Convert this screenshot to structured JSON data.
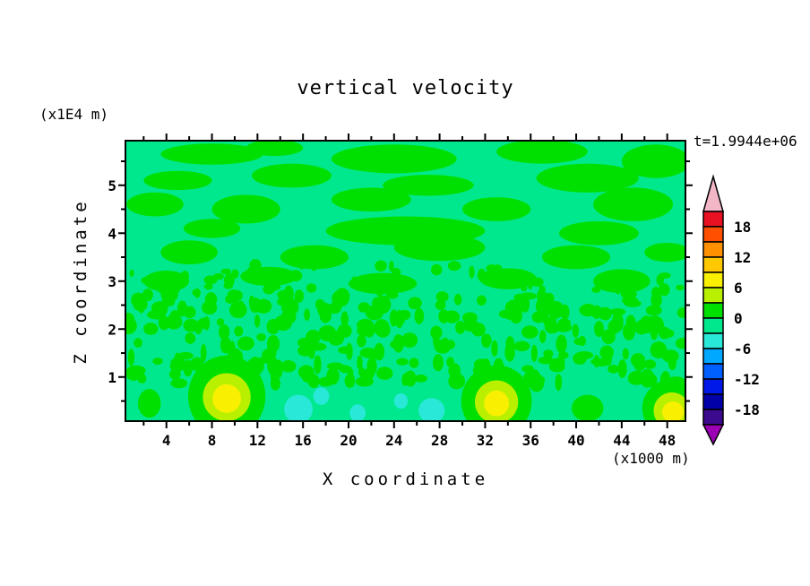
{
  "figure": {
    "title": "vertical velocity",
    "y_unit": "(x1E4 m)",
    "x_unit": "(x1000 m)",
    "xlabel": "X coordinate",
    "ylabel": "Z coordinate",
    "time_label": "t=1.9944e+06"
  },
  "chart_data": {
    "type": "contour",
    "title": "vertical velocity",
    "xlabel": "X coordinate",
    "ylabel": "Z coordinate",
    "x_unit_scale": "(x1000 m)",
    "y_unit_scale": "(x1E4 m)",
    "time": "t=1.9944e+06",
    "xlim": [
      0.4,
      49.6
    ],
    "zlim": [
      0.08,
      5.93
    ],
    "x_major_ticks": [
      4,
      8,
      12,
      16,
      20,
      24,
      28,
      32,
      36,
      40,
      44,
      48
    ],
    "x_minor_step": 2,
    "y_major_ticks": [
      1,
      2,
      3,
      4,
      5
    ],
    "y_minor_step": 0.5,
    "contour_interval": 3,
    "background_band": 7,
    "colorbar": {
      "labels": [
        18,
        12,
        6,
        0,
        -6,
        -12,
        -18
      ],
      "over_color": "#f2b6c6",
      "under_color": "#9b00b4",
      "bands": [
        {
          "range": [
            18,
            21
          ],
          "color": "#e81123"
        },
        {
          "range": [
            15,
            18
          ],
          "color": "#ff5000"
        },
        {
          "range": [
            12,
            15
          ],
          "color": "#ff9000"
        },
        {
          "range": [
            9,
            12
          ],
          "color": "#ffc800"
        },
        {
          "range": [
            6,
            9
          ],
          "color": "#f8f000"
        },
        {
          "range": [
            3,
            6
          ],
          "color": "#b8f000"
        },
        {
          "range": [
            0,
            3
          ],
          "color": "#00e000"
        },
        {
          "range": [
            -3,
            0
          ],
          "color": "#00e88e"
        },
        {
          "range": [
            -6,
            -3
          ],
          "color": "#2ae8d8"
        },
        {
          "range": [
            -9,
            -6
          ],
          "color": "#00a8ff"
        },
        {
          "range": [
            -12,
            -9
          ],
          "color": "#0060ff"
        },
        {
          "range": [
            -15,
            -12
          ],
          "color": "#0018e8"
        },
        {
          "range": [
            -18,
            -15
          ],
          "color": "#0000a8"
        },
        {
          "range": [
            -21,
            -18
          ],
          "color": "#3c0a8c"
        }
      ]
    },
    "features": [
      {
        "x": 8,
        "z": 5.65,
        "rx": 4.5,
        "rz": 0.22,
        "band": 6
      },
      {
        "x": 13.5,
        "z": 5.78,
        "rx": 2.5,
        "rz": 0.17,
        "band": 6
      },
      {
        "x": 24,
        "z": 5.55,
        "rx": 5.5,
        "rz": 0.3,
        "band": 6
      },
      {
        "x": 37,
        "z": 5.7,
        "rx": 4,
        "rz": 0.25,
        "band": 6
      },
      {
        "x": 47,
        "z": 5.5,
        "rx": 3,
        "rz": 0.35,
        "band": 6
      },
      {
        "x": 5,
        "z": 5.1,
        "rx": 3,
        "rz": 0.2,
        "band": 6
      },
      {
        "x": 15,
        "z": 5.2,
        "rx": 3.5,
        "rz": 0.25,
        "band": 6
      },
      {
        "x": 27,
        "z": 5.0,
        "rx": 4,
        "rz": 0.22,
        "band": 6
      },
      {
        "x": 41,
        "z": 5.15,
        "rx": 4.5,
        "rz": 0.3,
        "band": 6
      },
      {
        "x": 3,
        "z": 4.6,
        "rx": 2.5,
        "rz": 0.25,
        "band": 6
      },
      {
        "x": 11,
        "z": 4.5,
        "rx": 3,
        "rz": 0.3,
        "band": 6
      },
      {
        "x": 22,
        "z": 4.7,
        "rx": 3.5,
        "rz": 0.25,
        "band": 6
      },
      {
        "x": 33,
        "z": 4.5,
        "rx": 3,
        "rz": 0.25,
        "band": 6
      },
      {
        "x": 45,
        "z": 4.6,
        "rx": 3.5,
        "rz": 0.35,
        "band": 6
      },
      {
        "x": 25,
        "z": 4.05,
        "rx": 7,
        "rz": 0.3,
        "band": 6
      },
      {
        "x": 8,
        "z": 4.1,
        "rx": 2.5,
        "rz": 0.2,
        "band": 6
      },
      {
        "x": 42,
        "z": 4.0,
        "rx": 3.5,
        "rz": 0.25,
        "band": 6
      },
      {
        "x": 6,
        "z": 3.6,
        "rx": 2.5,
        "rz": 0.25,
        "band": 6
      },
      {
        "x": 17,
        "z": 3.5,
        "rx": 3,
        "rz": 0.25,
        "band": 6
      },
      {
        "x": 28,
        "z": 3.7,
        "rx": 4,
        "rz": 0.28,
        "band": 6
      },
      {
        "x": 40,
        "z": 3.5,
        "rx": 3,
        "rz": 0.25,
        "band": 6
      },
      {
        "x": 48,
        "z": 3.6,
        "rx": 2,
        "rz": 0.2,
        "band": 6
      },
      {
        "x": 4,
        "z": 3.0,
        "rx": 2,
        "rz": 0.22,
        "band": 6
      },
      {
        "x": 13,
        "z": 3.1,
        "rx": 2.5,
        "rz": 0.2,
        "band": 6
      },
      {
        "x": 23,
        "z": 2.95,
        "rx": 3,
        "rz": 0.22,
        "band": 6
      },
      {
        "x": 34,
        "z": 3.05,
        "rx": 2.5,
        "rz": 0.22,
        "band": 6
      },
      {
        "x": 44,
        "z": 3.0,
        "rx": 2.5,
        "rz": 0.25,
        "band": 6
      },
      {
        "x": 2.5,
        "z": 0.45,
        "rx": 1.0,
        "rz": 0.3,
        "band": 6
      },
      {
        "x": 9.3,
        "z": 0.6,
        "rx": 3.4,
        "rz": 0.85,
        "band": 6
      },
      {
        "x": 33,
        "z": 0.5,
        "rx": 3.1,
        "rz": 0.75,
        "band": 6
      },
      {
        "x": 41,
        "z": 0.35,
        "rx": 1.4,
        "rz": 0.28,
        "band": 6
      },
      {
        "x": 48.4,
        "z": 0.35,
        "rx": 2.6,
        "rz": 0.6,
        "band": 6
      },
      {
        "x": 15.6,
        "z": 0.33,
        "rx": 1.25,
        "rz": 0.3,
        "band": 8
      },
      {
        "x": 17.6,
        "z": 0.6,
        "rx": 0.7,
        "rz": 0.18,
        "band": 8
      },
      {
        "x": 27.3,
        "z": 0.3,
        "rx": 1.15,
        "rz": 0.26,
        "band": 8
      },
      {
        "x": 24.6,
        "z": 0.5,
        "rx": 0.6,
        "rz": 0.16,
        "band": 8
      },
      {
        "x": 20.8,
        "z": 0.25,
        "rx": 0.7,
        "rz": 0.18,
        "band": 8
      },
      {
        "x": 9.3,
        "z": 0.58,
        "rx": 2.1,
        "rz": 0.5,
        "band": 5
      },
      {
        "x": 33,
        "z": 0.48,
        "rx": 1.9,
        "rz": 0.45,
        "band": 5
      },
      {
        "x": 48.4,
        "z": 0.3,
        "rx": 1.6,
        "rz": 0.38,
        "band": 5
      },
      {
        "x": 9.3,
        "z": 0.55,
        "rx": 1.25,
        "rz": 0.3,
        "band": 4
      },
      {
        "x": 33,
        "z": 0.45,
        "rx": 1.1,
        "rz": 0.27,
        "band": 4
      },
      {
        "x": 48.5,
        "z": 0.27,
        "rx": 0.95,
        "rz": 0.22,
        "band": 4
      }
    ],
    "speckle_field": {
      "seed": 123456789,
      "count": 270,
      "z_range": [
        0.85,
        2.75
      ],
      "rx_range": [
        0.25,
        0.8
      ],
      "rz_range": [
        0.07,
        0.2
      ],
      "band": 6
    },
    "speckle_field_upper": {
      "seed": 987654321,
      "count": 50,
      "z_range": [
        2.75,
        3.35
      ],
      "rx_range": [
        0.2,
        0.6
      ],
      "rz_range": [
        0.06,
        0.15
      ],
      "band": 6
    }
  }
}
